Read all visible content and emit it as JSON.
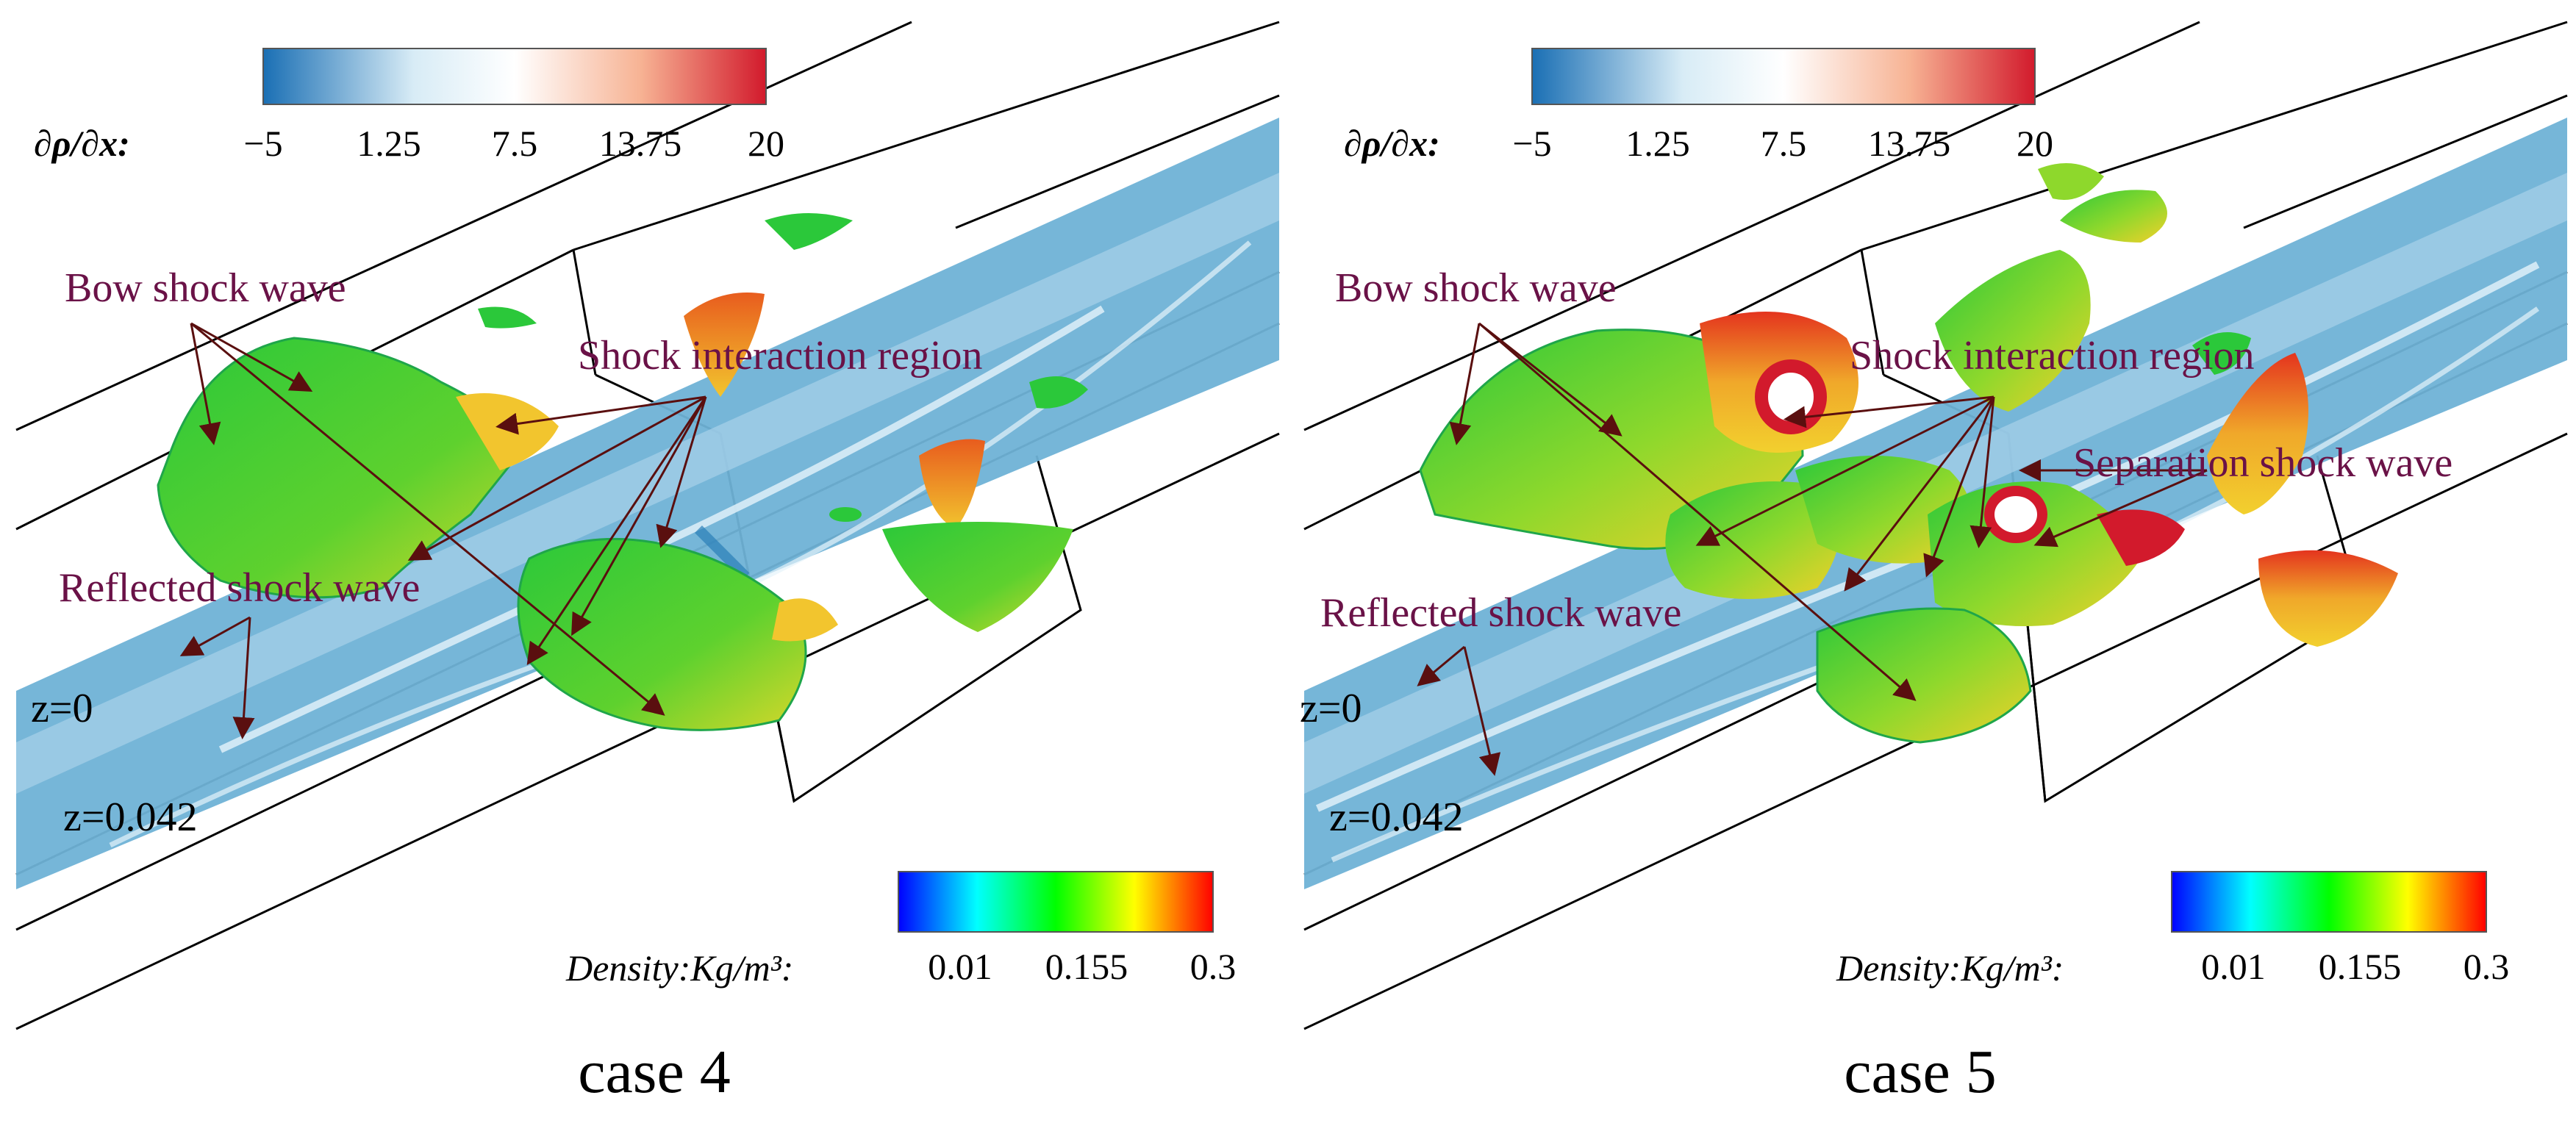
{
  "panels": [
    {
      "caption": "case 4",
      "grad_legend": {
        "title": "∂ρ/∂x:",
        "ticks": [
          "−5",
          "1.25",
          "7.5",
          "13.75",
          "20"
        ]
      },
      "density_legend": {
        "title": "Density:Kg/m³:",
        "ticks": [
          "0.01",
          "0.155",
          "0.3"
        ]
      },
      "labels": {
        "bow": "Bow shock wave",
        "interaction": "Shock interaction region",
        "reflected": "Reflected shock wave",
        "z0": "z=0",
        "z1": "z=0.042"
      }
    },
    {
      "caption": "case 5",
      "grad_legend": {
        "title": "∂ρ/∂x:",
        "ticks": [
          "−5",
          "1.25",
          "7.5",
          "13.75",
          "20"
        ]
      },
      "density_legend": {
        "title": "Density:Kg/m³:",
        "ticks": [
          "0.01",
          "0.155",
          "0.3"
        ]
      },
      "labels": {
        "bow": "Bow shock wave",
        "interaction": "Shock interaction region",
        "separation": "Separation shock wave",
        "reflected": "Reflected shock wave",
        "z0": "z=0",
        "z1": "z=0.042"
      }
    }
  ],
  "colors": {
    "annotation": "#6a1247",
    "arrow": "#5a0f0f",
    "slice": "#6fb2d6",
    "grad_colormap": [
      "#1a6fb4",
      "#d8ecf6",
      "#ffffff",
      "#f7b394",
      "#d21a2c"
    ],
    "density_colormap": [
      "#0000ff",
      "#00ffff",
      "#00ff00",
      "#ffff00",
      "#ff0000"
    ]
  }
}
